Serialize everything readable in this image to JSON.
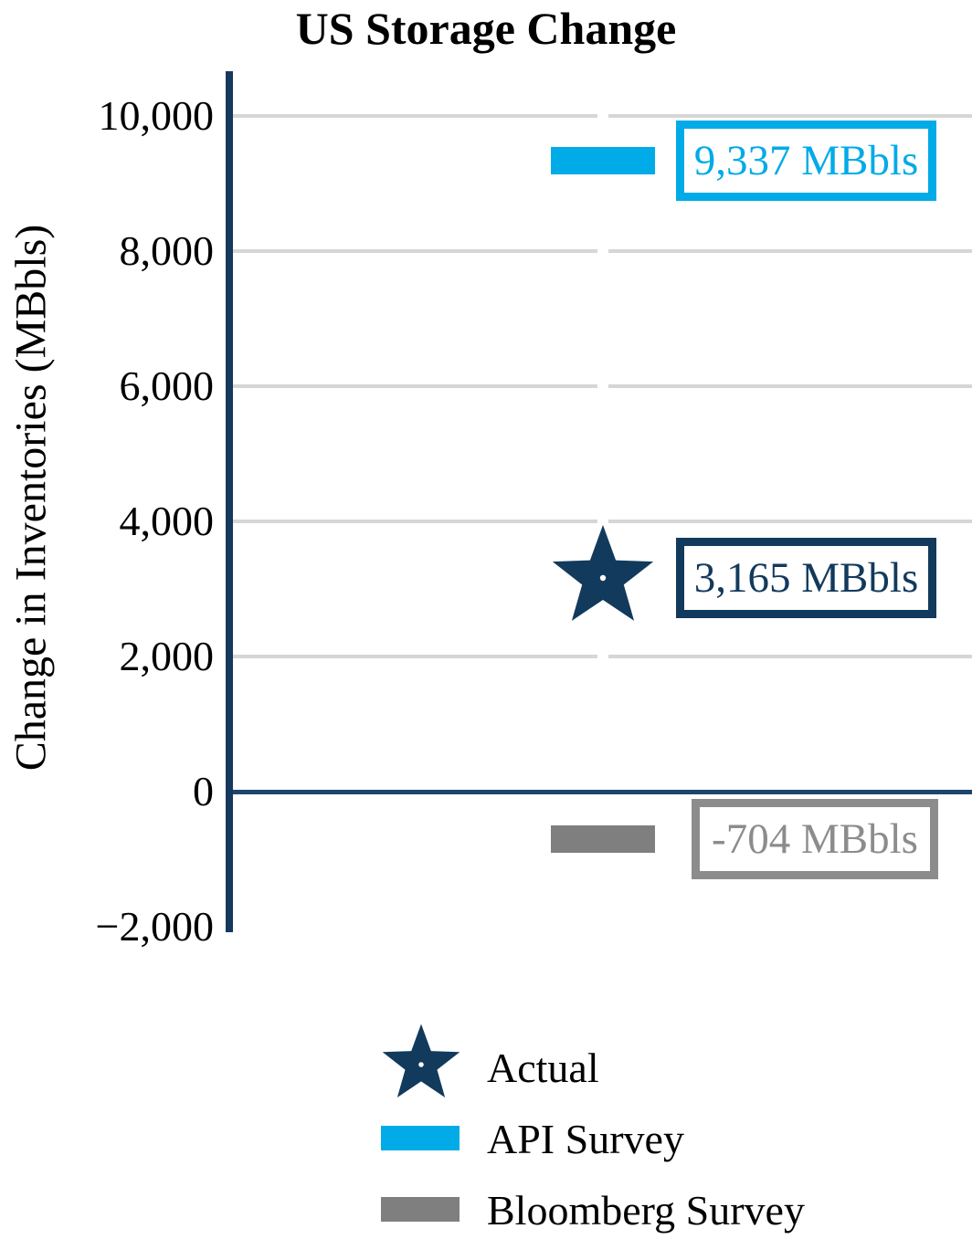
{
  "title": "US Storage Change",
  "y_axis": {
    "title": "Change in Inventories (MBbls)",
    "ticks": [
      {
        "value": 10000,
        "label": "10,000"
      },
      {
        "value": 8000,
        "label": "8,000"
      },
      {
        "value": 6000,
        "label": "6,000"
      },
      {
        "value": 4000,
        "label": "4,000"
      },
      {
        "value": 2000,
        "label": "2,000"
      },
      {
        "value": 0,
        "label": "0"
      },
      {
        "value": -2000,
        "label": "−2,000"
      }
    ]
  },
  "chart_data": {
    "type": "bar",
    "title": "US Storage Change",
    "xlabel": "",
    "ylabel": "Change in Inventories (MBbls)",
    "ylim": [
      -2100,
      10700
    ],
    "yticks": [
      -2000,
      0,
      2000,
      4000,
      6000,
      8000,
      10000
    ],
    "grid": true,
    "legend_position": "bottom",
    "series": [
      {
        "name": "Actual",
        "marker": "star",
        "value": 3165,
        "annotation": "3,165 MBbls",
        "color": "#123A5C",
        "annotation_color": "#123A5C"
      },
      {
        "name": "API Survey",
        "marker": "bar",
        "value": 9337,
        "annotation": "9,337 MBbls",
        "color": "#00ABE7",
        "annotation_color": "#00ABE7"
      },
      {
        "name": "Bloomberg Survey",
        "marker": "bar",
        "value": -704,
        "annotation": "-704 MBbls",
        "color": "#7F7F7F",
        "annotation_color": "#8C8C8C"
      }
    ]
  },
  "legend": {
    "items": [
      {
        "label": "Actual",
        "symbol": "star-icon",
        "color": "#123A5C"
      },
      {
        "label": "API Survey",
        "symbol": "bar-swatch",
        "color": "#00ABE7"
      },
      {
        "label": "Bloomberg Survey",
        "symbol": "bar-swatch",
        "color": "#7F7F7F"
      }
    ]
  },
  "colors": {
    "axis_spine": "#16395E",
    "zero_line": "#1E4470",
    "gridline": "#D6D6D6",
    "background": "#FFFFFF",
    "text": "#000000"
  }
}
